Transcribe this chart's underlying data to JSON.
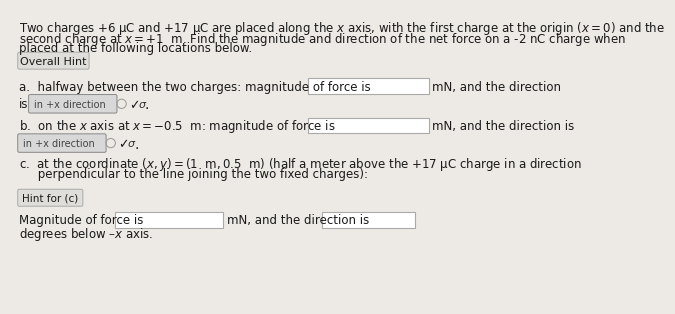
{
  "bg_color": "#ede9e4",
  "text_color": "#1a1a1a",
  "input_box_color": "#ffffff",
  "input_box_border": "#aaaaaa",
  "dropdown_bg": "#d8d8d8",
  "dropdown_border": "#888888",
  "button_bg": "#e0deda",
  "button_border": "#aaaaaa",
  "title_line1": "Two charges +6 μC and +17 μC are placed along the $x$ axis, with the first charge at the origin ($x = 0$) and the",
  "title_line2": "second charge at $x = +1$  m. Find the magnitude and direction of the net force on a -2 nC charge when",
  "title_line3": "placed at the following locations below.",
  "hint_button": "Overall Hint",
  "part_a_text": "a.  halfway between the two charges: magnitude of force is",
  "part_a_suffix": "mN, and the direction",
  "part_a_line2a": "is",
  "part_a_dropdown": "in +x direction",
  "part_b_text": "b.  on the $x$ axis at $x = -0.5$  m: magnitude of force is",
  "part_b_suffix": "mN, and the direction is",
  "part_b_dropdown": "in +x direction",
  "part_c_line1": "c.  at the coordinate $(x, y) = (1$  m$, 0.5$  m$)$ (half a meter above the +17 μC charge in a direction",
  "part_c_line2": "     perpendicular to the line joining the two fixed charges):",
  "hint_c_button": "Hint for (c)",
  "part_c_mag_label": "Magnitude of force is",
  "part_c_mag_suffix": "mN, and the direction is",
  "part_c_dir_suffix": "degrees below –$x$ axis.",
  "fontsize_main": 8.8,
  "fontsize_dropdown": 7.0,
  "fontsize_button": 8.0
}
